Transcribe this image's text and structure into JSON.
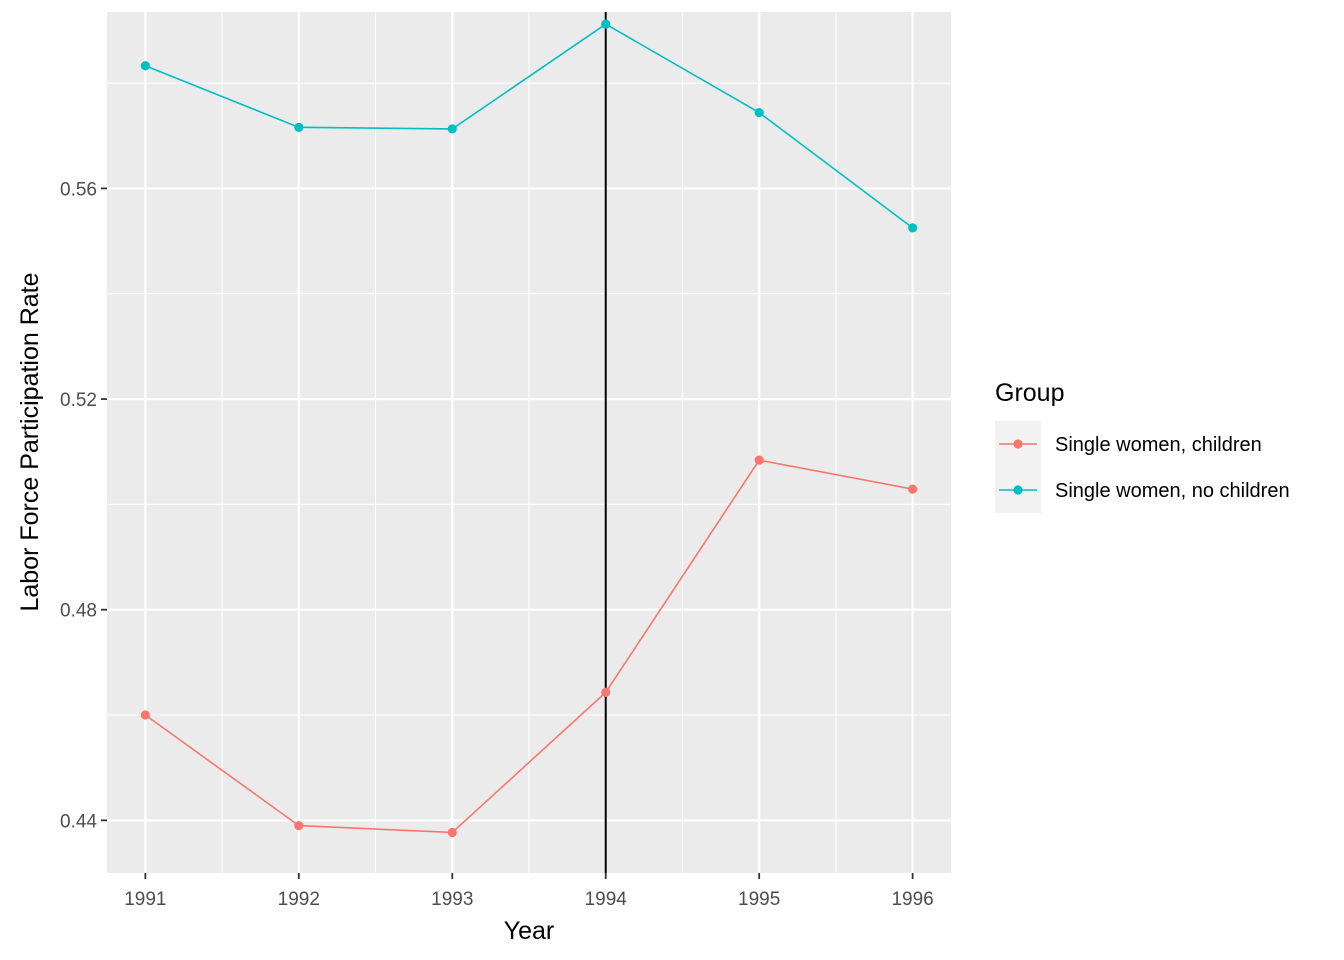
{
  "chart_data": {
    "type": "line",
    "x": [
      1991,
      1992,
      1993,
      1994,
      1995,
      1996
    ],
    "x_tick_labels": [
      "1991",
      "1992",
      "1993",
      "1994",
      "1995",
      "1996"
    ],
    "xlabel": "Year",
    "ylabel": "Labor Force Participation Rate",
    "ylim": [
      0.43,
      0.5935
    ],
    "xlim": [
      1990.75,
      1996.25
    ],
    "y_ticks": [
      0.44,
      0.48,
      0.52,
      0.56
    ],
    "y_tick_labels": [
      "0.44",
      "0.48",
      "0.52",
      "0.56"
    ],
    "vline_x": 1994,
    "grid": true,
    "legend": {
      "title": "Group",
      "placement": "right"
    },
    "series": [
      {
        "name": "Single women, children",
        "color": "#F8766D",
        "values": [
          0.46,
          0.439,
          0.4377,
          0.4643,
          0.5084,
          0.5029
        ]
      },
      {
        "name": "Single women, no children",
        "color": "#00BFC4",
        "values": [
          0.5833,
          0.5716,
          0.5713,
          0.5912,
          0.5744,
          0.5525
        ]
      }
    ]
  }
}
